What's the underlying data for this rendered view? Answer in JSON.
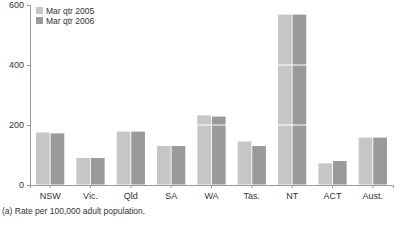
{
  "chart_data": {
    "type": "bar",
    "categories": [
      "NSW",
      "Vic.",
      "Qld",
      "SA",
      "WA",
      "Tas.",
      "NT",
      "ACT",
      "Aust."
    ],
    "series": [
      {
        "name": "Mar qtr 2005",
        "color": "#c6c6c6",
        "values": [
          175,
          90,
          178,
          130,
          232,
          145,
          568,
          72,
          158
        ]
      },
      {
        "name": "Mar qtr 2006",
        "color": "#9a9a9a",
        "values": [
          172,
          90,
          178,
          130,
          228,
          130,
          568,
          80,
          158
        ]
      }
    ],
    "ylim": [
      0,
      600
    ],
    "yticks": [
      0,
      200,
      400,
      600
    ],
    "grid": true,
    "legend": "top-left",
    "annotations": [
      "(a) Rate per 100,000 adult population."
    ]
  }
}
